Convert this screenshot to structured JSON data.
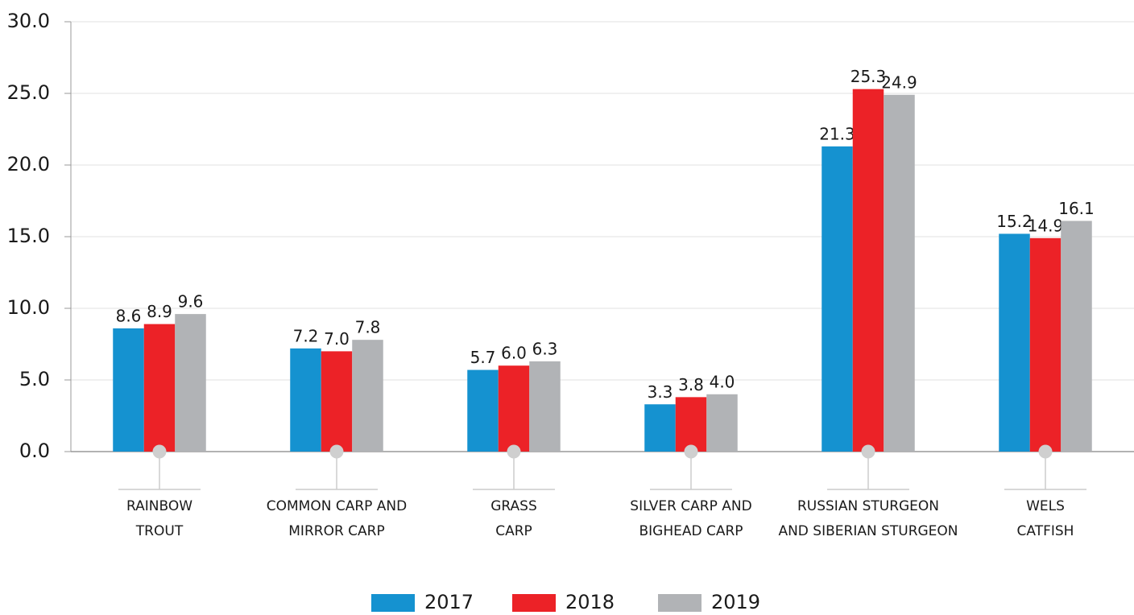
{
  "chart_data": {
    "type": "bar",
    "categories": [
      [
        "RAINBOW",
        "TROUT"
      ],
      [
        "COMMON CARP AND",
        "MIRROR CARP"
      ],
      [
        "GRASS",
        "CARP"
      ],
      [
        "SILVER CARP AND",
        "BIGHEAD CARP"
      ],
      [
        "RUSSIAN STURGEON",
        "AND SIBERIAN STURGEON"
      ],
      [
        "WELS",
        "CATFISH"
      ]
    ],
    "series": [
      {
        "name": "2017",
        "color": "#1592d0",
        "values": [
          8.6,
          7.2,
          5.7,
          3.3,
          21.3,
          15.2
        ],
        "value_labels": [
          "8.6",
          "7.2",
          "5.7",
          "3.3",
          "21.3",
          "15.2"
        ]
      },
      {
        "name": "2018",
        "color": "#ec2227",
        "values": [
          8.9,
          7.0,
          6.0,
          3.8,
          25.3,
          14.9
        ],
        "value_labels": [
          "8.9",
          "7.0",
          "6.0",
          "3.8",
          "25.3",
          "14.9"
        ]
      },
      {
        "name": "2019",
        "color": "#b1b3b6",
        "values": [
          9.6,
          7.8,
          6.3,
          4.0,
          24.9,
          16.1
        ],
        "value_labels": [
          "9.6",
          "7.8",
          "6.3",
          "4.0",
          "24.9",
          "16.1"
        ]
      }
    ],
    "ylim": [
      0,
      30
    ],
    "yticks": [
      {
        "value": 0,
        "label": "0.0"
      },
      {
        "value": 5,
        "label": "5.0"
      },
      {
        "value": 10,
        "label": "10.0"
      },
      {
        "value": 15,
        "label": "15.0"
      },
      {
        "value": 20,
        "label": "20.0"
      },
      {
        "value": 25,
        "label": "25.0"
      },
      {
        "value": 30,
        "label": "30.0"
      }
    ],
    "grid": true,
    "legend": "bottom"
  }
}
